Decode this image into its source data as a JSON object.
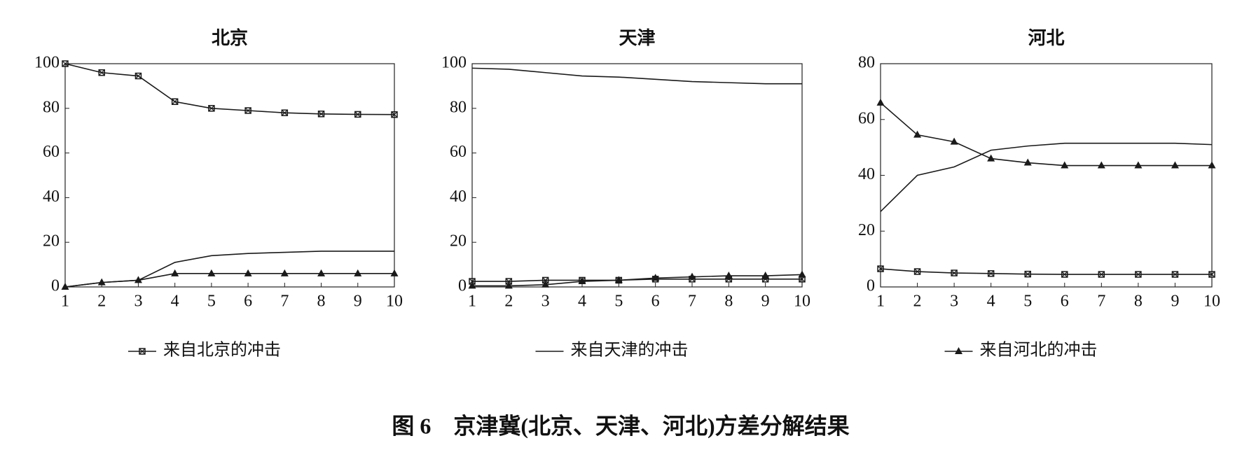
{
  "caption": "图 6　京津冀(北京、天津、河北)方差分解结果",
  "chart_data": [
    {
      "type": "line",
      "title": "北京",
      "x": [
        1,
        2,
        3,
        4,
        5,
        6,
        7,
        8,
        9,
        10
      ],
      "xlim": [
        1,
        10
      ],
      "xticks": [
        1,
        2,
        3,
        4,
        5,
        6,
        7,
        8,
        9,
        10
      ],
      "ylim": [
        0,
        100
      ],
      "yticks": [
        0,
        20,
        40,
        60,
        80,
        100
      ],
      "series": [
        {
          "name": "来自北京的冲击",
          "color": "#1a1a1a",
          "marker": "square",
          "values": [
            100,
            96,
            94.5,
            83,
            80,
            79,
            78,
            77.5,
            77.3,
            77.2
          ]
        },
        {
          "name": "来自天津的冲击",
          "color": "#1a1a1a",
          "marker": "none",
          "values": [
            0,
            2,
            3,
            11,
            14,
            15,
            15.5,
            16,
            16,
            16
          ]
        },
        {
          "name": "来自河北的冲击",
          "color": "#1a1a1a",
          "marker": "triangle",
          "values": [
            0,
            2,
            3,
            6,
            6,
            6,
            6,
            6,
            6,
            6
          ]
        }
      ]
    },
    {
      "type": "line",
      "title": "天津",
      "x": [
        1,
        2,
        3,
        4,
        5,
        6,
        7,
        8,
        9,
        10
      ],
      "xlim": [
        1,
        10
      ],
      "xticks": [
        1,
        2,
        3,
        4,
        5,
        6,
        7,
        8,
        9,
        10
      ],
      "ylim": [
        0,
        100
      ],
      "yticks": [
        0,
        20,
        40,
        60,
        80,
        100
      ],
      "series": [
        {
          "name": "来自北京的冲击",
          "color": "#1a1a1a",
          "marker": "square",
          "values": [
            2.5,
            2.5,
            3,
            3,
            3,
            3.5,
            3.5,
            3.5,
            3.5,
            3.5
          ]
        },
        {
          "name": "来自天津的冲击",
          "color": "#1a1a1a",
          "marker": "none",
          "values": [
            98,
            97.5,
            96,
            94.5,
            94,
            93,
            92,
            91.5,
            91,
            91
          ]
        },
        {
          "name": "来自河北的冲击",
          "color": "#1a1a1a",
          "marker": "triangle",
          "values": [
            0.5,
            0.5,
            1,
            2.5,
            3,
            4,
            4.5,
            5,
            5,
            5.5
          ]
        }
      ]
    },
    {
      "type": "line",
      "title": "河北",
      "x": [
        1,
        2,
        3,
        4,
        5,
        6,
        7,
        8,
        9,
        10
      ],
      "xlim": [
        1,
        10
      ],
      "xticks": [
        1,
        2,
        3,
        4,
        5,
        6,
        7,
        8,
        9,
        10
      ],
      "ylim": [
        0,
        80
      ],
      "yticks": [
        0,
        20,
        40,
        60,
        80
      ],
      "series": [
        {
          "name": "来自北京的冲击",
          "color": "#1a1a1a",
          "marker": "square",
          "values": [
            6.5,
            5.5,
            5,
            4.8,
            4.6,
            4.5,
            4.5,
            4.5,
            4.5,
            4.5
          ]
        },
        {
          "name": "来自天津的冲击",
          "color": "#1a1a1a",
          "marker": "none",
          "values": [
            27,
            40,
            43,
            49,
            50.5,
            51.5,
            51.5,
            51.5,
            51.5,
            51
          ]
        },
        {
          "name": "来自河北的冲击",
          "color": "#1a1a1a",
          "marker": "triangle",
          "values": [
            66,
            54.5,
            52,
            46,
            44.5,
            43.5,
            43.5,
            43.5,
            43.5,
            43.5
          ]
        }
      ]
    }
  ]
}
